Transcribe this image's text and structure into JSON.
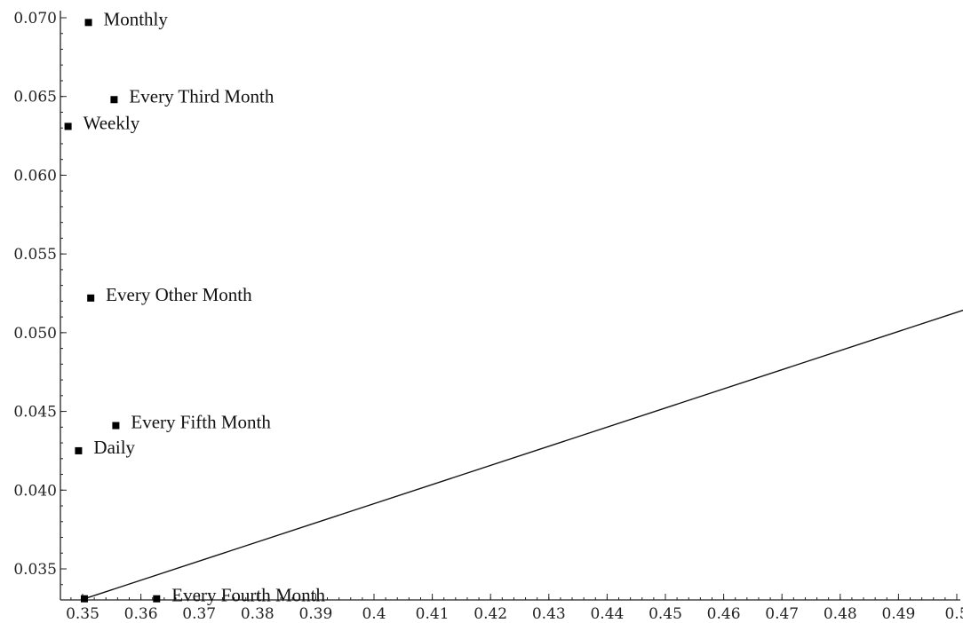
{
  "chart_data": {
    "type": "scatter",
    "title": "",
    "xlabel": "",
    "ylabel": "",
    "xlim": [
      0.347,
      0.5025
    ],
    "ylim": [
      0.0328,
      0.0705
    ],
    "x_ticks": [
      0.35,
      0.36,
      0.37,
      0.38,
      0.39,
      0.4,
      0.41,
      0.42,
      0.43,
      0.44,
      0.45,
      0.46,
      0.47,
      0.48,
      0.49,
      0.5
    ],
    "x_tick_labels": [
      "0.35",
      "0.36",
      "0.37",
      "0.38",
      "0.39",
      "0.4",
      "0.41",
      "0.42",
      "0.43",
      "0.44",
      "0.45",
      "0.46",
      "0.47",
      "0.48",
      "0.49",
      "0.5"
    ],
    "y_ticks": [
      0.035,
      0.04,
      0.045,
      0.05,
      0.055,
      0.06,
      0.065,
      0.07
    ],
    "y_tick_labels": [
      "0.035",
      "0.040",
      "0.045",
      "0.050",
      "0.055",
      "0.060",
      "0.065",
      "0.070"
    ],
    "points": [
      {
        "label": "Monthly",
        "x": 0.351,
        "y": 0.0697
      },
      {
        "label": "Every Third Month",
        "x": 0.3554,
        "y": 0.0648
      },
      {
        "label": "Weekly",
        "x": 0.3475,
        "y": 0.0631
      },
      {
        "label": "Every Other Month",
        "x": 0.3514,
        "y": 0.0522
      },
      {
        "label": "Every Fifth Month",
        "x": 0.3557,
        "y": 0.0441
      },
      {
        "label": "Daily",
        "x": 0.3493,
        "y": 0.0425
      },
      {
        "label": "Every Fourth Month",
        "x": 0.3627,
        "y": 0.0331
      },
      {
        "label": "",
        "x": 0.3503,
        "y": 0.0331
      },
      {
        "label": "",
        "x": 0.5025,
        "y": 0.0516
      }
    ],
    "line": [
      {
        "x": 0.3503,
        "y": 0.0331
      },
      {
        "x": 0.5025,
        "y": 0.0516
      }
    ],
    "grid": false,
    "legend": "none"
  }
}
